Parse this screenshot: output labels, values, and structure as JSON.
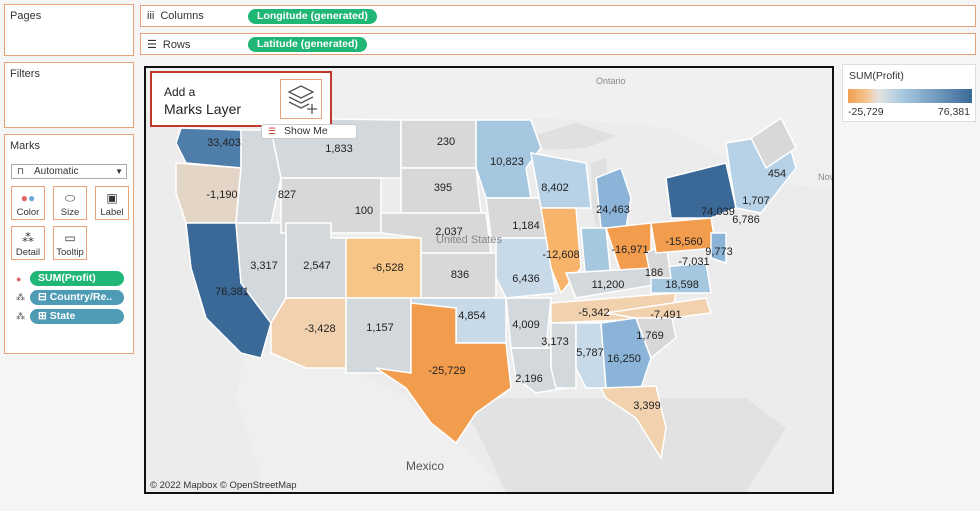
{
  "cards": {
    "pages": "Pages",
    "filters": "Filters",
    "marks": "Marks"
  },
  "columns": {
    "label": "Columns",
    "pill": "Longitude (generated)"
  },
  "rows": {
    "label": "Rows",
    "pill": "Latitude (generated)"
  },
  "marks": {
    "type": "Automatic",
    "buttons": {
      "color": "Color",
      "size": "Size",
      "label": "Label",
      "detail": "Detail",
      "tooltip": "Tooltip"
    },
    "fields": [
      "SUM(Profit)",
      "Country/Re..",
      "State"
    ]
  },
  "callout": {
    "line1": "Add a",
    "line2": "Marks Layer",
    "show_me": "Show Me"
  },
  "legend": {
    "title": "SUM(Profit)",
    "min": "-25,729",
    "max": "76,381",
    "color_low": "#f29c4e",
    "color_high": "#3a6998"
  },
  "map": {
    "attribution": "© 2022 Mapbox © OpenStreetMap",
    "place_labels": {
      "ontario": "Ontario",
      "united_states": "United States",
      "mexico": "Mexico",
      "nov": "Nov"
    },
    "profits": [
      "33,403",
      "1,833",
      "230",
      "10,823",
      "454",
      "-1,190",
      "827",
      "395",
      "8,402",
      "1,707",
      "100",
      "24,463",
      "74,039",
      "6,786",
      "2,037",
      "1,184",
      "-12,608",
      "-16,971",
      "-15,560",
      "9,773",
      "3,317",
      "2,547",
      "-6,528",
      "836",
      "6,436",
      "186",
      "-7,031",
      "76,381",
      "11,200",
      "18,598",
      "4,854",
      "-5,342",
      "-7,491",
      "-3,428",
      "1,157",
      "4,009",
      "1,769",
      "3,173",
      "5,787",
      "16,250",
      "-25,729",
      "2,196",
      "3,399"
    ]
  }
}
